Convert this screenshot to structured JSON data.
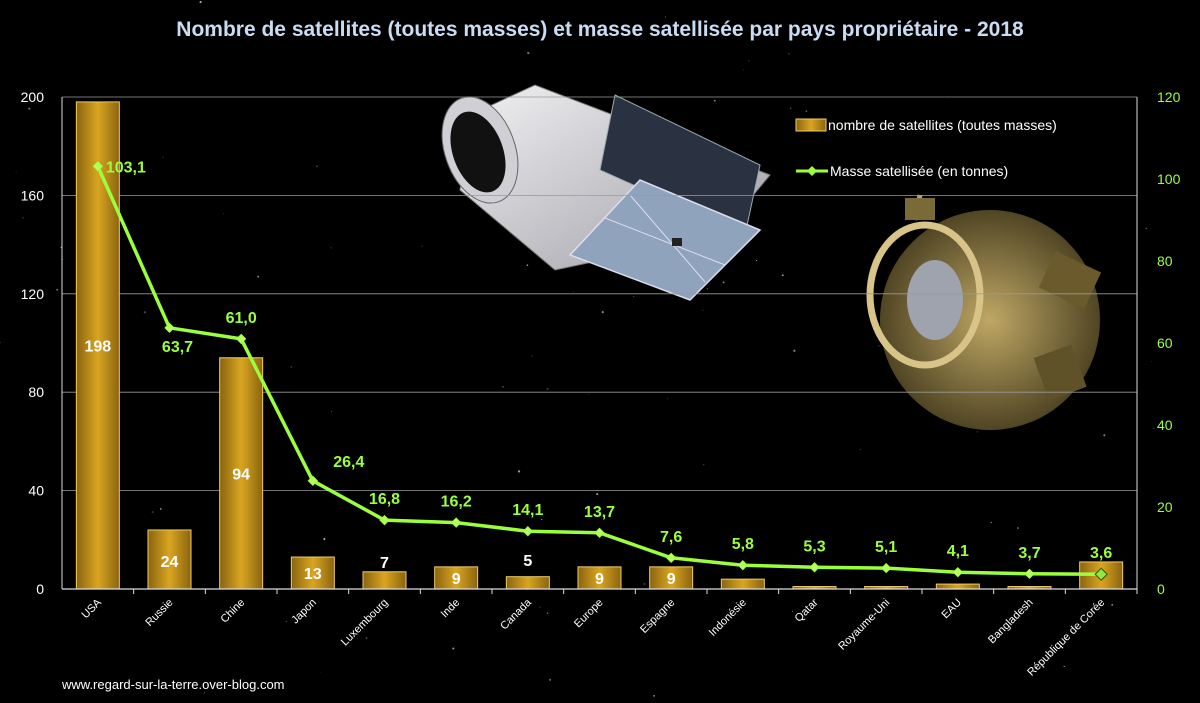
{
  "chart_data": {
    "type": "bar",
    "title": "Nombre de satellites (toutes masses) et masse satellisée par pays propriétaire - 2018",
    "categories": [
      "USA",
      "Russie",
      "Chine",
      "Japon",
      "Luxembourg",
      "Inde",
      "Canada",
      "Europe",
      "Espagne",
      "Indonésie",
      "Qatar",
      "Royaume-Uni",
      "EAU",
      "Bangladesh",
      "République de Corée"
    ],
    "series": [
      {
        "name": "nombre de satellites (toutes masses)",
        "type": "bar",
        "axis": "left",
        "color": "#d4a017",
        "values": [
          198,
          24,
          94,
          13,
          7,
          9,
          5,
          9,
          9,
          4,
          1,
          1,
          2,
          1,
          11
        ],
        "labels": [
          "198",
          "24",
          "94",
          "13",
          "7",
          "9",
          "5",
          "9",
          "9",
          "",
          "",
          "",
          "",
          "",
          ""
        ]
      },
      {
        "name": "Masse satellisée (en tonnes)",
        "type": "line",
        "axis": "right",
        "color": "#9cff3e",
        "values": [
          103.1,
          63.7,
          61.0,
          26.4,
          16.8,
          16.2,
          14.1,
          13.7,
          7.6,
          5.8,
          5.3,
          5.1,
          4.1,
          3.7,
          3.6
        ],
        "labels": [
          "103,1",
          "63,7",
          "61,0",
          "26,4",
          "16,8",
          "16,2",
          "14,1",
          "13,7",
          "7,6",
          "5,8",
          "5,3",
          "5,1",
          "4,1",
          "3,7",
          "3,6"
        ]
      }
    ],
    "yleft": {
      "ticks": [
        "0",
        "40",
        "80",
        "120",
        "160",
        "200"
      ],
      "ylim": [
        0,
        200
      ]
    },
    "yright": {
      "ticks": [
        "0",
        "20",
        "40",
        "60",
        "80",
        "100",
        "120"
      ],
      "ylim": [
        0,
        120
      ],
      "color": "#9cff3e"
    },
    "grid": true,
    "legend": "top-right"
  },
  "source": "www.regard-sur-la-terre.over-blog.com"
}
